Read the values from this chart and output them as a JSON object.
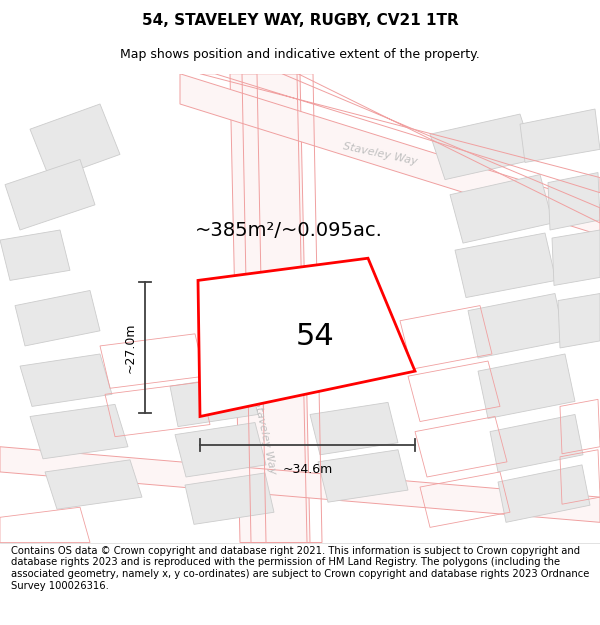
{
  "title": "54, STAVELEY WAY, RUGBY, CV21 1TR",
  "subtitle": "Map shows position and indicative extent of the property.",
  "area_label": "~385m²/~0.095ac.",
  "number_label": "54",
  "width_label": "~34.6m",
  "height_label": "~27.0m",
  "footer": "Contains OS data © Crown copyright and database right 2021. This information is subject to Crown copyright and database rights 2023 and is reproduced with the permission of HM Land Registry. The polygons (including the associated geometry, namely x, y co-ordinates) are subject to Crown copyright and database rights 2023 Ordnance Survey 100026316.",
  "bg_color": "#ffffff",
  "map_bg": "#f8f8f8",
  "plot_color": "#ff0000",
  "block_face": "#e8e8e8",
  "block_edge": "#cccccc",
  "road_outline": "#f0a0a0",
  "street_label_color": "#c0c0c0",
  "dim_color": "#404040",
  "title_fontsize": 11,
  "subtitle_fontsize": 9,
  "footer_fontsize": 7.2,
  "area_fontsize": 14,
  "number_fontsize": 22,
  "dim_fontsize": 9,
  "street_fontsize": 8
}
